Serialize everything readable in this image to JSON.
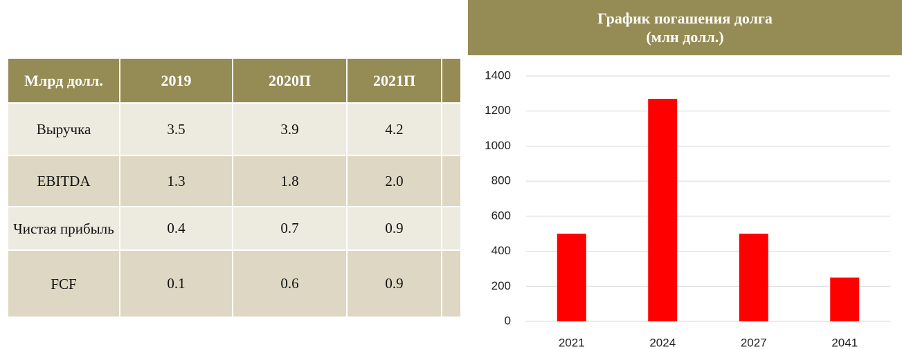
{
  "table": {
    "header": [
      "Млрд долл.",
      "2019",
      "2020П",
      "2021П"
    ],
    "rows": [
      [
        "Выручка",
        "3.5",
        "3.9",
        "4.2"
      ],
      [
        "EBITDA",
        "1.3",
        "1.8",
        "2.0"
      ],
      [
        "Чистая прибыль",
        "0.4",
        "0.7",
        "0.9"
      ],
      [
        "FCF",
        "0.1",
        "0.6",
        "0.9"
      ]
    ]
  },
  "chart_data": {
    "type": "bar",
    "title": "График погашения долга (млн долл.)",
    "categories": [
      "2021",
      "2024",
      "2027",
      "2041"
    ],
    "values": [
      500,
      1270,
      500,
      250
    ],
    "color": "#ff0000",
    "ylim": [
      0,
      1400
    ],
    "yticks": [
      0,
      200,
      400,
      600,
      800,
      1000,
      1200,
      1400
    ],
    "grid": true
  }
}
